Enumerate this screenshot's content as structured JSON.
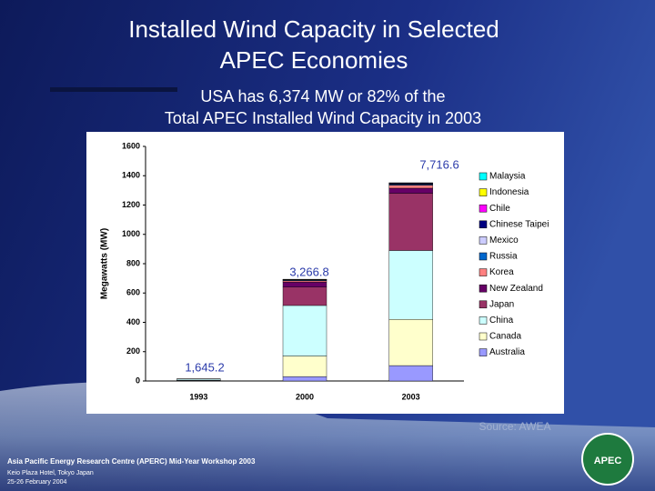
{
  "slide": {
    "title_lines": [
      "Installed Wind Capacity in Selected",
      "APEC Economies"
    ],
    "subtitle_lines": [
      "USA has 6,374 MW or 82% of the",
      "Total APEC Installed Wind Capacity in 2003"
    ],
    "source": "Source: AWEA",
    "footer": [
      "Asia Pacific Energy Research Centre (APERC) Mid-Year Workshop 2003",
      "Keio Plaza Hotel, Tokyo Japan",
      "25-26 February 2004"
    ],
    "logo_text": "APEC"
  },
  "chart_data": {
    "type": "stacked_bar",
    "ylabel": "Megawatts (MW)",
    "categories": [
      "1993",
      "2000",
      "2003"
    ],
    "ylim": [
      0,
      1600
    ],
    "yticks": [
      0,
      200,
      400,
      600,
      800,
      1000,
      1200,
      1400,
      1600
    ],
    "annotations": [
      "1,645.2",
      "3,266.8",
      "7,716.6"
    ],
    "series": [
      {
        "name": "Australia",
        "color": "#9999ff",
        "values": [
          3,
          30,
          105
        ]
      },
      {
        "name": "Canada",
        "color": "#ffffcc",
        "values": [
          2,
          140,
          315
        ]
      },
      {
        "name": "China",
        "color": "#ccffff",
        "values": [
          8,
          345,
          470
        ]
      },
      {
        "name": "Japan",
        "color": "#993366",
        "values": [
          2,
          125,
          390
        ]
      },
      {
        "name": "New Zealand",
        "color": "#660066",
        "values": [
          0,
          35,
          35
        ]
      },
      {
        "name": "Korea",
        "color": "#ff8080",
        "values": [
          0,
          8,
          20
        ]
      },
      {
        "name": "Russia",
        "color": "#0066cc",
        "values": [
          0,
          5,
          5
        ]
      },
      {
        "name": "Mexico",
        "color": "#ccccff",
        "values": [
          0,
          2,
          3
        ]
      },
      {
        "name": "Chinese Taipei",
        "color": "#000080",
        "values": [
          0,
          3,
          5
        ]
      },
      {
        "name": "Chile",
        "color": "#ff00ff",
        "values": [
          0,
          0,
          2
        ]
      },
      {
        "name": "Indonesia",
        "color": "#ffff00",
        "values": [
          0,
          1,
          1
        ]
      },
      {
        "name": "Malaysia",
        "color": "#00ffff",
        "values": [
          0,
          0,
          1
        ]
      }
    ]
  }
}
